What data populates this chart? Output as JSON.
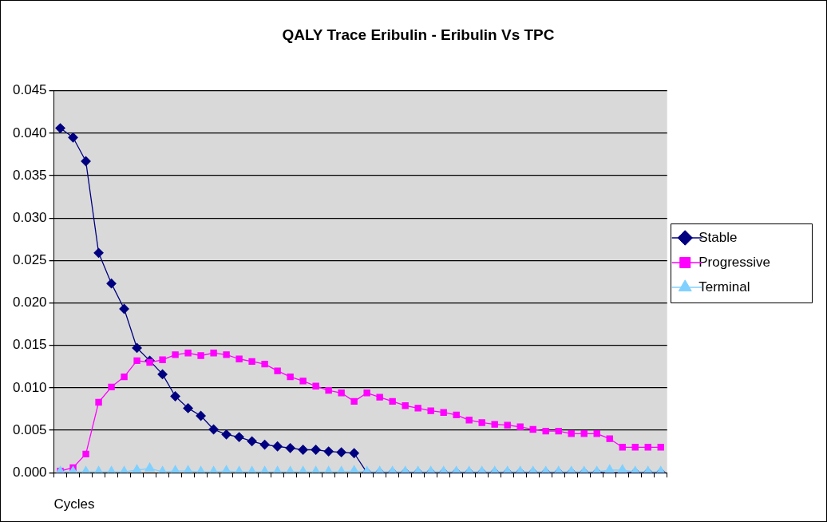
{
  "chart_data": {
    "type": "line",
    "title": "QALY Trace Eribulin - Eribulin Vs TPC",
    "xlabel": "Cycles",
    "categories": [
      null,
      null,
      null,
      null,
      null,
      null,
      null,
      null,
      null,
      null,
      null,
      null,
      null,
      null,
      null,
      null,
      null,
      null,
      null,
      null,
      null,
      null,
      null,
      null,
      null,
      null,
      null,
      null,
      null,
      null,
      null,
      null,
      null,
      null,
      null,
      null,
      null,
      null,
      null,
      null,
      null,
      null,
      null,
      null,
      null,
      null,
      null,
      null
    ],
    "series": [
      {
        "name": "Stable",
        "color": "#000080",
        "marker": "diamond",
        "values": [
          0.0406,
          0.0395,
          0.0367,
          0.0259,
          0.0223,
          0.0193,
          0.0147,
          0.0132,
          0.0116,
          0.009,
          0.0076,
          0.0067,
          0.0051,
          0.0045,
          0.0042,
          0.0037,
          0.0033,
          0.0031,
          0.0029,
          0.0027,
          0.0027,
          0.0025,
          0.0024,
          0.0023,
          0,
          0,
          0,
          0,
          0,
          0,
          0,
          0,
          0,
          0,
          0,
          0,
          0,
          0,
          0,
          0,
          0,
          0,
          0,
          0,
          0,
          0,
          0,
          0
        ]
      },
      {
        "name": "Progressive",
        "color": "#ff00ff",
        "marker": "square",
        "values": [
          0.0002,
          0.0006,
          0.0022,
          0.0083,
          0.0101,
          0.0113,
          0.0132,
          0.013,
          0.0133,
          0.0139,
          0.0141,
          0.0138,
          0.0141,
          0.0139,
          0.0134,
          0.0131,
          0.0128,
          0.012,
          0.0113,
          0.0108,
          0.0102,
          0.0097,
          0.0094,
          0.0084,
          0.0094,
          0.0089,
          0.0084,
          0.0079,
          0.0076,
          0.0073,
          0.0071,
          0.0068,
          0.0062,
          0.0059,
          0.0057,
          0.0056,
          0.0054,
          0.0051,
          0.0049,
          0.0049,
          0.0046,
          0.0046,
          0.0046,
          0.004,
          0.003,
          0.003,
          0.003,
          0.003
        ]
      },
      {
        "name": "Terminal",
        "color": "#80d0ff",
        "marker": "triangle",
        "values": [
          0.0001,
          0.0001,
          0.0001,
          0.0001,
          0.0001,
          0.0001,
          0.0003,
          0.0005,
          0.0001,
          0.0002,
          0.0002,
          0.0001,
          0.0001,
          0.0002,
          0.0001,
          0.0001,
          0.0001,
          0.0001,
          0.0001,
          0.0001,
          0.0001,
          0.0001,
          0.0001,
          0.0002,
          0.0001,
          0.0001,
          0.0001,
          0.0001,
          0.0001,
          0.0001,
          0.0001,
          0.0001,
          0.0001,
          0.0001,
          0.0001,
          0.0001,
          0.0001,
          0.0001,
          0.0001,
          0.0001,
          0.0001,
          0.0001,
          0.0001,
          0.0003,
          0.0003,
          0.0001,
          0.0001,
          0.0001
        ]
      }
    ],
    "ylim": [
      0,
      0.045
    ],
    "yticks": [
      {
        "value": 0,
        "label": "0.000"
      },
      {
        "value": 0.005,
        "label": "0.005"
      },
      {
        "value": 0.01,
        "label": "0.010"
      },
      {
        "value": 0.015,
        "label": "0.015"
      },
      {
        "value": 0.02,
        "label": "0.020"
      },
      {
        "value": 0.025,
        "label": "0.025"
      },
      {
        "value": 0.03,
        "label": "0.030"
      },
      {
        "value": 0.035,
        "label": "0.035"
      },
      {
        "value": 0.04,
        "label": "0.040"
      },
      {
        "value": 0.045,
        "label": "0.045"
      }
    ],
    "grid": "y",
    "legend": "right",
    "line_style": "solid"
  }
}
